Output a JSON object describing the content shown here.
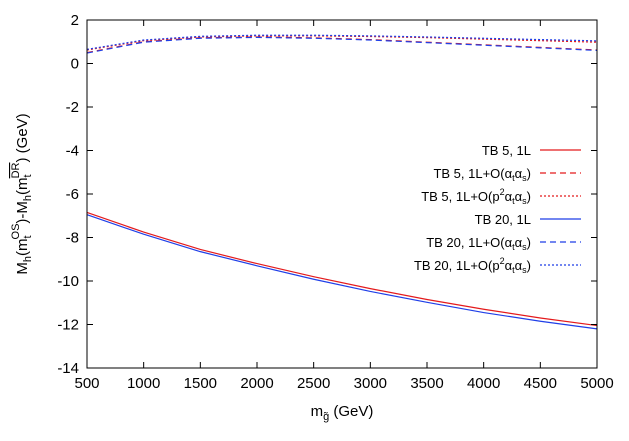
{
  "chart_data": {
    "type": "line",
    "title": "",
    "xlabel": "m_g~ (GeV)",
    "ylabel": "M_h(m_t^OS)-M_h(m_t^DR) (GeV)",
    "xlim": [
      500,
      5000
    ],
    "ylim": [
      -14,
      2
    ],
    "xticks": [
      "500",
      "1000",
      "1500",
      "2000",
      "2500",
      "3000",
      "3500",
      "4000",
      "4500",
      "5000"
    ],
    "yticks": [
      "2",
      "0",
      "-2",
      "-4",
      "-6",
      "-8",
      "-10",
      "-12",
      "-14"
    ],
    "grid": false,
    "legend_position": "right",
    "x": [
      500,
      1000,
      1500,
      2000,
      2500,
      3000,
      3500,
      4000,
      4500,
      5000
    ],
    "series": [
      {
        "name": "TB 5, 1L",
        "color": "#e41a1c",
        "dash": "solid",
        "values": [
          -6.85,
          -7.75,
          -8.55,
          -9.2,
          -9.8,
          -10.35,
          -10.85,
          -11.3,
          -11.7,
          -12.05
        ]
      },
      {
        "name": "TB 5, 1L+O(αtαs)",
        "color": "#e41a1c",
        "dash": "dashed",
        "values": [
          0.5,
          1.0,
          1.18,
          1.22,
          1.18,
          1.1,
          0.98,
          0.86,
          0.74,
          0.62
        ]
      },
      {
        "name": "TB 5, 1L+O(p²αtαs)",
        "color": "#e41a1c",
        "dash": "dotted",
        "values": [
          0.62,
          1.05,
          1.22,
          1.27,
          1.27,
          1.24,
          1.19,
          1.12,
          1.05,
          0.98
        ]
      },
      {
        "name": "TB 20, 1L",
        "color": "#1f3fe8",
        "dash": "solid",
        "values": [
          -6.95,
          -7.85,
          -8.65,
          -9.3,
          -9.92,
          -10.48,
          -10.98,
          -11.45,
          -11.85,
          -12.2
        ]
      },
      {
        "name": "TB 20, 1L+O(αtαs)",
        "color": "#1f3fe8",
        "dash": "dashed",
        "values": [
          0.48,
          0.98,
          1.16,
          1.2,
          1.16,
          1.08,
          0.96,
          0.84,
          0.72,
          0.6
        ]
      },
      {
        "name": "TB 20, 1L+O(p²αtαs)",
        "color": "#1f3fe8",
        "dash": "dotted",
        "values": [
          0.65,
          1.08,
          1.25,
          1.3,
          1.3,
          1.27,
          1.22,
          1.16,
          1.1,
          1.04
        ]
      }
    ],
    "legend": [
      {
        "pre": "TB 5, 1L",
        "sup": "",
        "mid": "",
        "sub1": "",
        "a": "",
        "sub2": "",
        "post": ""
      },
      {
        "pre": "TB 5, 1L+O(",
        "sup": "",
        "mid": "α",
        "sub1": "t",
        "a": "α",
        "sub2": "s",
        "post": ")"
      },
      {
        "pre": "TB 5, 1L+O(p",
        "sup": "2",
        "mid": "α",
        "sub1": "t",
        "a": "α",
        "sub2": "s",
        "post": ")"
      },
      {
        "pre": "TB 20, 1L",
        "sup": "",
        "mid": "",
        "sub1": "",
        "a": "",
        "sub2": "",
        "post": ""
      },
      {
        "pre": "TB 20, 1L+O(",
        "sup": "",
        "mid": "α",
        "sub1": "t",
        "a": "α",
        "sub2": "s",
        "post": ")"
      },
      {
        "pre": "TB 20, 1L+O(p",
        "sup": "2",
        "mid": "α",
        "sub1": "t",
        "a": "α",
        "sub2": "s",
        "post": ")"
      }
    ],
    "xlabel_parts": {
      "m": "m",
      "sub": "g̃",
      "unit": " (GeV)"
    },
    "ylabel_parts": {
      "a": "M",
      "a_sub": "h",
      "b": "(m",
      "b_sub": "t",
      "b_sup": "OS",
      "c": ")-M",
      "c_sub": "h",
      "d": "(m",
      "d_sub": "t",
      "d_sup": "DR",
      "e": ") (GeV)"
    }
  }
}
